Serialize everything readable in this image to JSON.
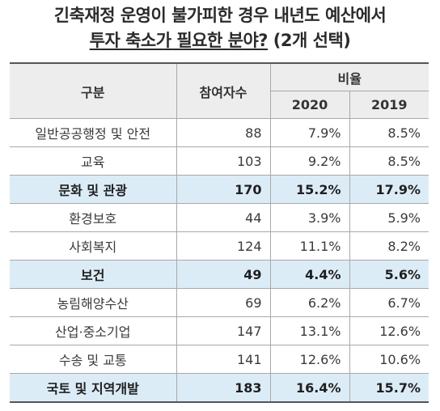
{
  "title": {
    "line1": "긴축재정 운영이 불가피한 경우 내년도 예산에서",
    "line2_underlined": "투자 축소가 필요한 분야?",
    "line2_suffix": " (2개 선택)"
  },
  "table": {
    "headers": {
      "category": "구분",
      "respondents": "참여자수",
      "ratio": "비율",
      "year_2020": "2020",
      "year_2019": "2019"
    },
    "rows": [
      {
        "category": "일반공공행정 및 안전",
        "respondents": "88",
        "r2020": "7.9%",
        "r2019": "8.5%",
        "highlight": false
      },
      {
        "category": "교육",
        "respondents": "103",
        "r2020": "9.2%",
        "r2019": "8.5%",
        "highlight": false
      },
      {
        "category": "문화 및 관광",
        "respondents": "170",
        "r2020": "15.2%",
        "r2019": "17.9%",
        "highlight": true
      },
      {
        "category": "환경보호",
        "respondents": "44",
        "r2020": "3.9%",
        "r2019": "5.9%",
        "highlight": false
      },
      {
        "category": "사회복지",
        "respondents": "124",
        "r2020": "11.1%",
        "r2019": "8.2%",
        "highlight": false
      },
      {
        "category": "보건",
        "respondents": "49",
        "r2020": "4.4%",
        "r2019": "5.6%",
        "highlight": true
      },
      {
        "category": "농림해양수산",
        "respondents": "69",
        "r2020": "6.2%",
        "r2019": "6.7%",
        "highlight": false
      },
      {
        "category": "산업·중소기업",
        "respondents": "147",
        "r2020": "13.1%",
        "r2019": "12.6%",
        "highlight": false
      },
      {
        "category": "수송 및 교통",
        "respondents": "141",
        "r2020": "12.6%",
        "r2019": "10.6%",
        "highlight": false
      },
      {
        "category": "국토 및 지역개발",
        "respondents": "183",
        "r2020": "16.4%",
        "r2019": "15.7%",
        "highlight": true
      }
    ]
  },
  "colors": {
    "highlight_row": "#dcecf7",
    "header_bg": "#ededed",
    "border": "#a9a9a9",
    "rule": "#555555"
  }
}
